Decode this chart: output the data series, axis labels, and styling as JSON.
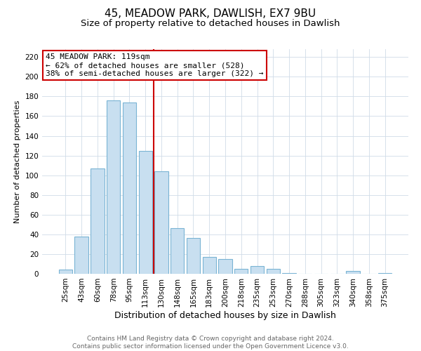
{
  "title": "45, MEADOW PARK, DAWLISH, EX7 9BU",
  "subtitle": "Size of property relative to detached houses in Dawlish",
  "xlabel": "Distribution of detached houses by size in Dawlish",
  "ylabel": "Number of detached properties",
  "bar_labels": [
    "25sqm",
    "43sqm",
    "60sqm",
    "78sqm",
    "95sqm",
    "113sqm",
    "130sqm",
    "148sqm",
    "165sqm",
    "183sqm",
    "200sqm",
    "218sqm",
    "235sqm",
    "253sqm",
    "270sqm",
    "288sqm",
    "305sqm",
    "323sqm",
    "340sqm",
    "358sqm",
    "375sqm"
  ],
  "bar_values": [
    4,
    38,
    107,
    176,
    174,
    125,
    104,
    46,
    36,
    17,
    15,
    5,
    8,
    5,
    1,
    0,
    0,
    0,
    3,
    0,
    1
  ],
  "bar_color": "#c8dff0",
  "bar_edge_color": "#7ab4d4",
  "vline_color": "#cc0000",
  "ylim": [
    0,
    228
  ],
  "yticks": [
    0,
    20,
    40,
    60,
    80,
    100,
    120,
    140,
    160,
    180,
    200,
    220
  ],
  "annotation_title": "45 MEADOW PARK: 119sqm",
  "annotation_line1": "← 62% of detached houses are smaller (528)",
  "annotation_line2": "38% of semi-detached houses are larger (322) →",
  "annotation_box_color": "#ffffff",
  "annotation_box_edge": "#cc0000",
  "footer1": "Contains HM Land Registry data © Crown copyright and database right 2024.",
  "footer2": "Contains public sector information licensed under the Open Government Licence v3.0.",
  "title_fontsize": 11,
  "subtitle_fontsize": 9.5,
  "xlabel_fontsize": 9,
  "ylabel_fontsize": 8,
  "tick_fontsize": 7.5,
  "annotation_fontsize": 8,
  "footer_fontsize": 6.5
}
